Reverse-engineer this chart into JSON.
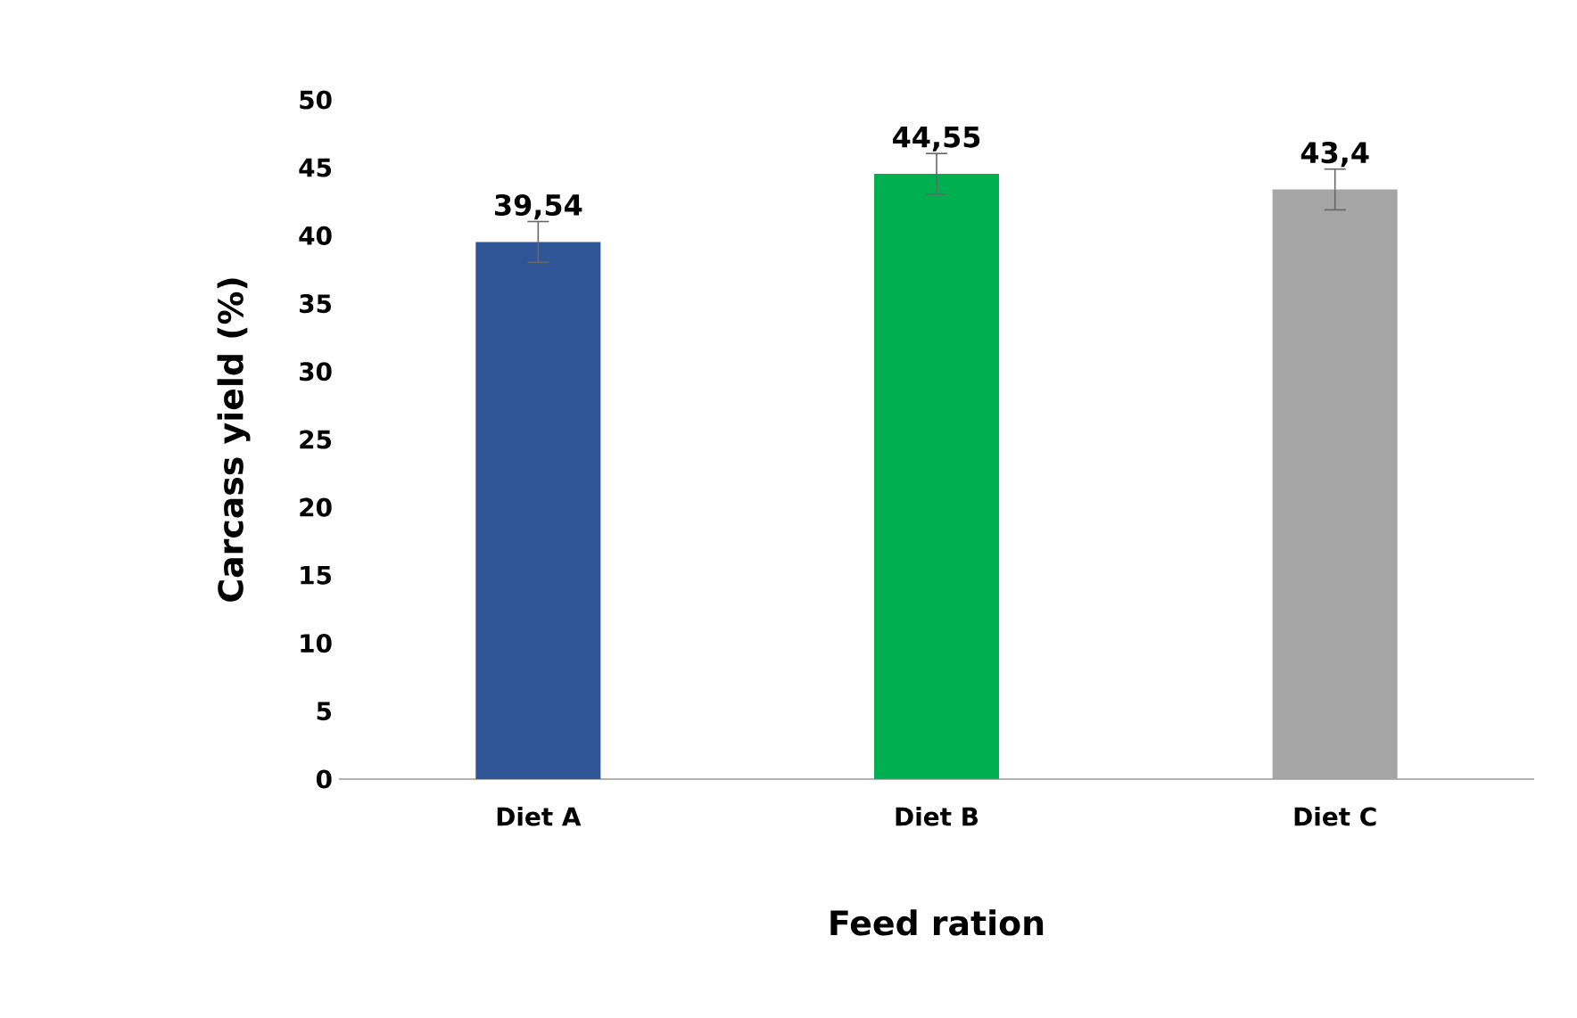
{
  "chart_data": {
    "type": "bar",
    "xlabel": "Feed ration",
    "ylabel": "Carcass yield (%)",
    "categories": [
      "Diet A",
      "Diet B",
      "Diet C"
    ],
    "values": [
      39.54,
      44.55,
      43.4
    ],
    "errors": [
      1.5,
      1.5,
      1.5
    ],
    "value_labels": [
      "39,54",
      "44,55",
      "43,4"
    ],
    "colors": [
      "#2f5597",
      "#00b050",
      "#a5a5a5"
    ],
    "ylim": [
      0,
      50
    ],
    "yticks": [
      0,
      5,
      10,
      15,
      20,
      25,
      30,
      35,
      40,
      45,
      50
    ],
    "grid": false
  }
}
